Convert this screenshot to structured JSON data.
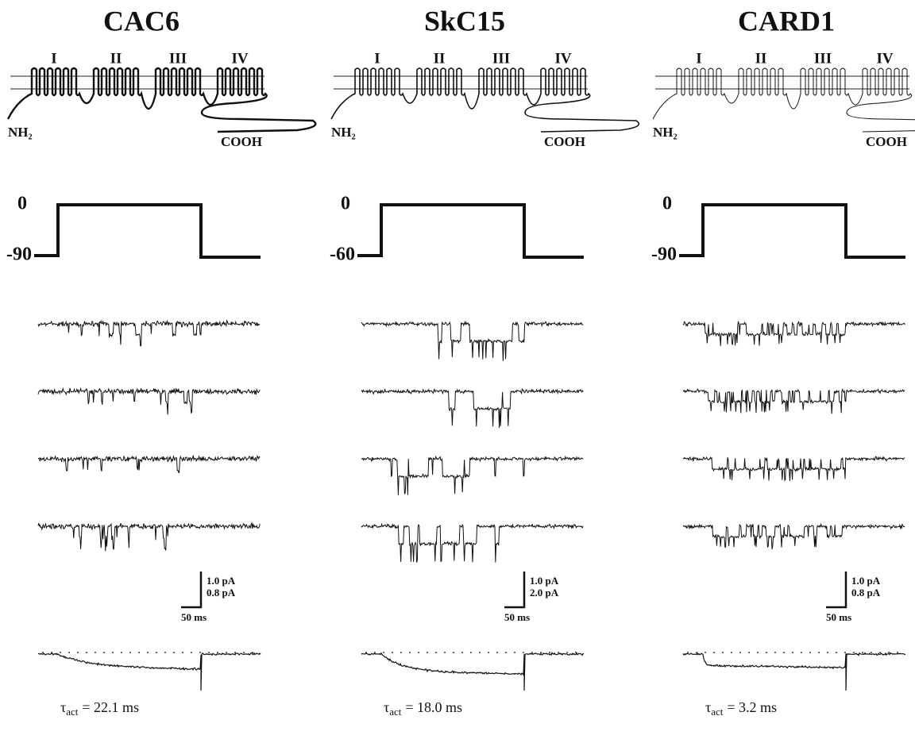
{
  "panels": [
    {
      "title": "CAC6",
      "domains": [
        "I",
        "II",
        "III",
        "IV"
      ],
      "n_terminus": "NH₂",
      "c_terminus": "COOH",
      "test_potential": "0",
      "holding_potential": "-90",
      "scale_bar": {
        "current_labels": [
          "1.0 pA",
          "0.8 pA"
        ],
        "time_label": "50 ms"
      },
      "tau": {
        "symbol": "τ",
        "subscript": "act",
        "text": "= 22.1 ms"
      }
    },
    {
      "title": "SkC15",
      "domains": [
        "I",
        "II",
        "III",
        "IV"
      ],
      "n_terminus": "NH₂",
      "c_terminus": "COOH",
      "test_potential": "0",
      "holding_potential": "-60",
      "scale_bar": {
        "current_labels": [
          "1.0 pA",
          "2.0 pA"
        ],
        "time_label": "50 ms"
      },
      "tau": {
        "symbol": "τ",
        "subscript": "act",
        "text": "= 18.0 ms"
      }
    },
    {
      "title": "CARD1",
      "domains": [
        "I",
        "II",
        "III",
        "IV"
      ],
      "n_terminus": "NH₂",
      "c_terminus": "COOH",
      "test_potential": "0",
      "holding_potential": "-90",
      "scale_bar": {
        "current_labels": [
          "1.0 pA",
          "0.8 pA"
        ],
        "time_label": "50 ms"
      },
      "tau": {
        "symbol": "τ",
        "subscript": "act",
        "text": "= 3.2 ms"
      }
    }
  ]
}
